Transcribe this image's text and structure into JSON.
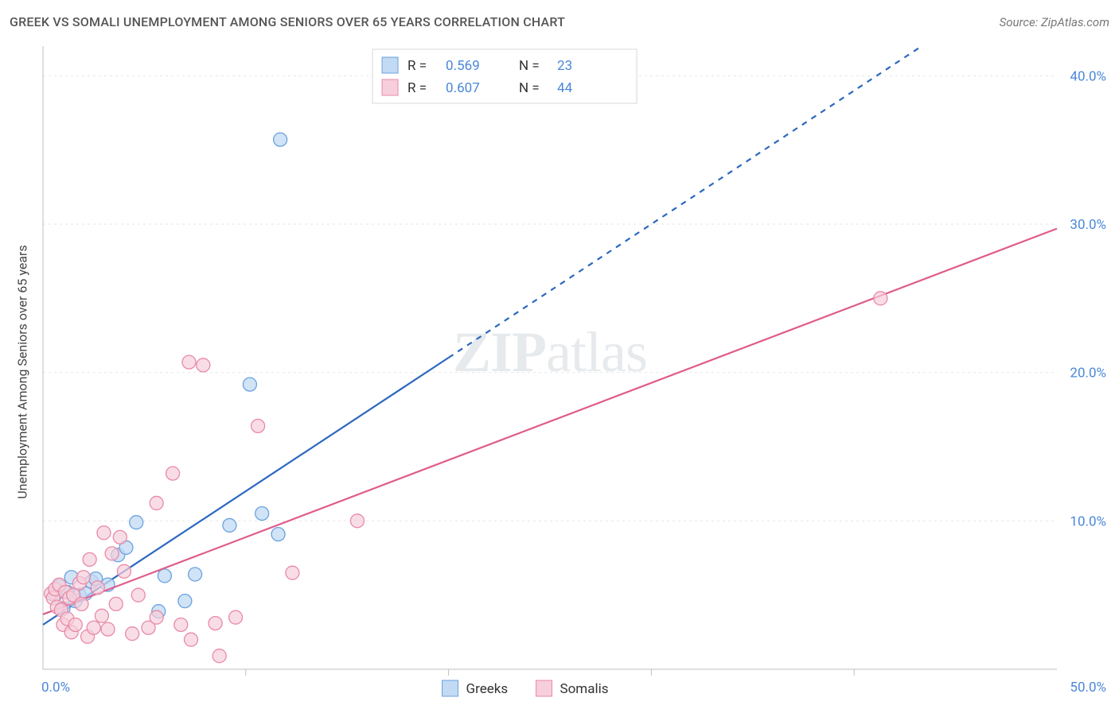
{
  "title": "GREEK VS SOMALI UNEMPLOYMENT AMONG SENIORS OVER 65 YEARS CORRELATION CHART",
  "source_label": "Source: ZipAtlas.com",
  "ylabel": "Unemployment Among Seniors over 65 years",
  "chart": {
    "type": "scatter",
    "x_range": [
      0,
      50
    ],
    "y_range": [
      0,
      42
    ],
    "x_ticks": [
      0,
      50
    ],
    "x_tick_labels": [
      "0.0%",
      "50.0%"
    ],
    "x_minor_ticks": [
      10,
      20,
      30,
      40
    ],
    "y_ticks": [
      10,
      20,
      30,
      40
    ],
    "y_tick_labels": [
      "10.0%",
      "20.0%",
      "30.0%",
      "40.0%"
    ],
    "plot_bg": "#ffffff",
    "grid_color": "#e6e6e6",
    "axis_color": "#bfbfbf",
    "tick_label_color": "#4a87d8",
    "tick_fontsize": 17,
    "watermark_text": "ZIPatlas",
    "series": [
      {
        "name": "Greeks",
        "marker_stroke": "#6aa2e0",
        "marker_fill": "#c2daf3",
        "marker_opacity": 0.75,
        "marker_radius": 8.5,
        "line_color": "#2b67c0",
        "line_width": 2.2,
        "line_solid_until_x": 20,
        "regression": {
          "intercept": 3.0,
          "slope": 0.9
        },
        "R": "0.569",
        "N": "23",
        "points": [
          [
            0.6,
            5.0
          ],
          [
            0.8,
            5.6
          ],
          [
            1.0,
            4.1
          ],
          [
            1.2,
            5.2
          ],
          [
            1.4,
            6.2
          ],
          [
            1.6,
            4.6
          ],
          [
            1.8,
            5.0
          ],
          [
            2.1,
            5.1
          ],
          [
            2.4,
            5.9
          ],
          [
            2.6,
            6.1
          ],
          [
            3.2,
            5.7
          ],
          [
            3.7,
            7.7
          ],
          [
            4.1,
            8.2
          ],
          [
            4.6,
            9.9
          ],
          [
            5.7,
            3.9
          ],
          [
            6.0,
            6.3
          ],
          [
            7.0,
            4.6
          ],
          [
            7.5,
            6.4
          ],
          [
            9.2,
            9.7
          ],
          [
            10.2,
            19.2
          ],
          [
            10.8,
            10.5
          ],
          [
            11.6,
            9.1
          ],
          [
            11.7,
            35.7
          ]
        ]
      },
      {
        "name": "Somalis",
        "marker_stroke": "#e98aa6",
        "marker_fill": "#f7cedb",
        "marker_opacity": 0.7,
        "marker_radius": 8.5,
        "line_color": "#df5c8a",
        "line_width": 2.2,
        "line_solid_until_x": 50,
        "regression": {
          "intercept": 3.7,
          "slope": 0.52
        },
        "R": "0.607",
        "N": "44",
        "points": [
          [
            0.4,
            5.1
          ],
          [
            0.5,
            4.8
          ],
          [
            0.6,
            5.4
          ],
          [
            0.7,
            4.2
          ],
          [
            0.8,
            5.7
          ],
          [
            0.9,
            4.0
          ],
          [
            1.0,
            3.0
          ],
          [
            1.1,
            5.2
          ],
          [
            1.2,
            3.4
          ],
          [
            1.3,
            4.8
          ],
          [
            1.4,
            2.5
          ],
          [
            1.5,
            5.0
          ],
          [
            1.6,
            3.0
          ],
          [
            1.8,
            5.8
          ],
          [
            1.9,
            4.4
          ],
          [
            2.0,
            6.2
          ],
          [
            2.2,
            2.2
          ],
          [
            2.3,
            7.4
          ],
          [
            2.5,
            2.8
          ],
          [
            2.7,
            5.5
          ],
          [
            2.9,
            3.6
          ],
          [
            3.0,
            9.2
          ],
          [
            3.2,
            2.7
          ],
          [
            3.4,
            7.8
          ],
          [
            3.6,
            4.4
          ],
          [
            3.8,
            8.9
          ],
          [
            4.0,
            6.6
          ],
          [
            4.4,
            2.4
          ],
          [
            4.7,
            5.0
          ],
          [
            5.2,
            2.8
          ],
          [
            5.6,
            11.2
          ],
          [
            5.6,
            3.5
          ],
          [
            6.4,
            13.2
          ],
          [
            6.8,
            3.0
          ],
          [
            7.2,
            20.7
          ],
          [
            7.3,
            2.0
          ],
          [
            7.9,
            20.5
          ],
          [
            8.5,
            3.1
          ],
          [
            8.7,
            0.9
          ],
          [
            9.5,
            3.5
          ],
          [
            10.6,
            16.4
          ],
          [
            12.3,
            6.5
          ],
          [
            15.5,
            10.0
          ],
          [
            41.3,
            25.0
          ]
        ]
      }
    ],
    "legend_top": {
      "border_color": "#d8d8d8",
      "bg": "#ffffff"
    },
    "legend_bottom": {
      "items": [
        "Greeks",
        "Somalis"
      ]
    }
  }
}
